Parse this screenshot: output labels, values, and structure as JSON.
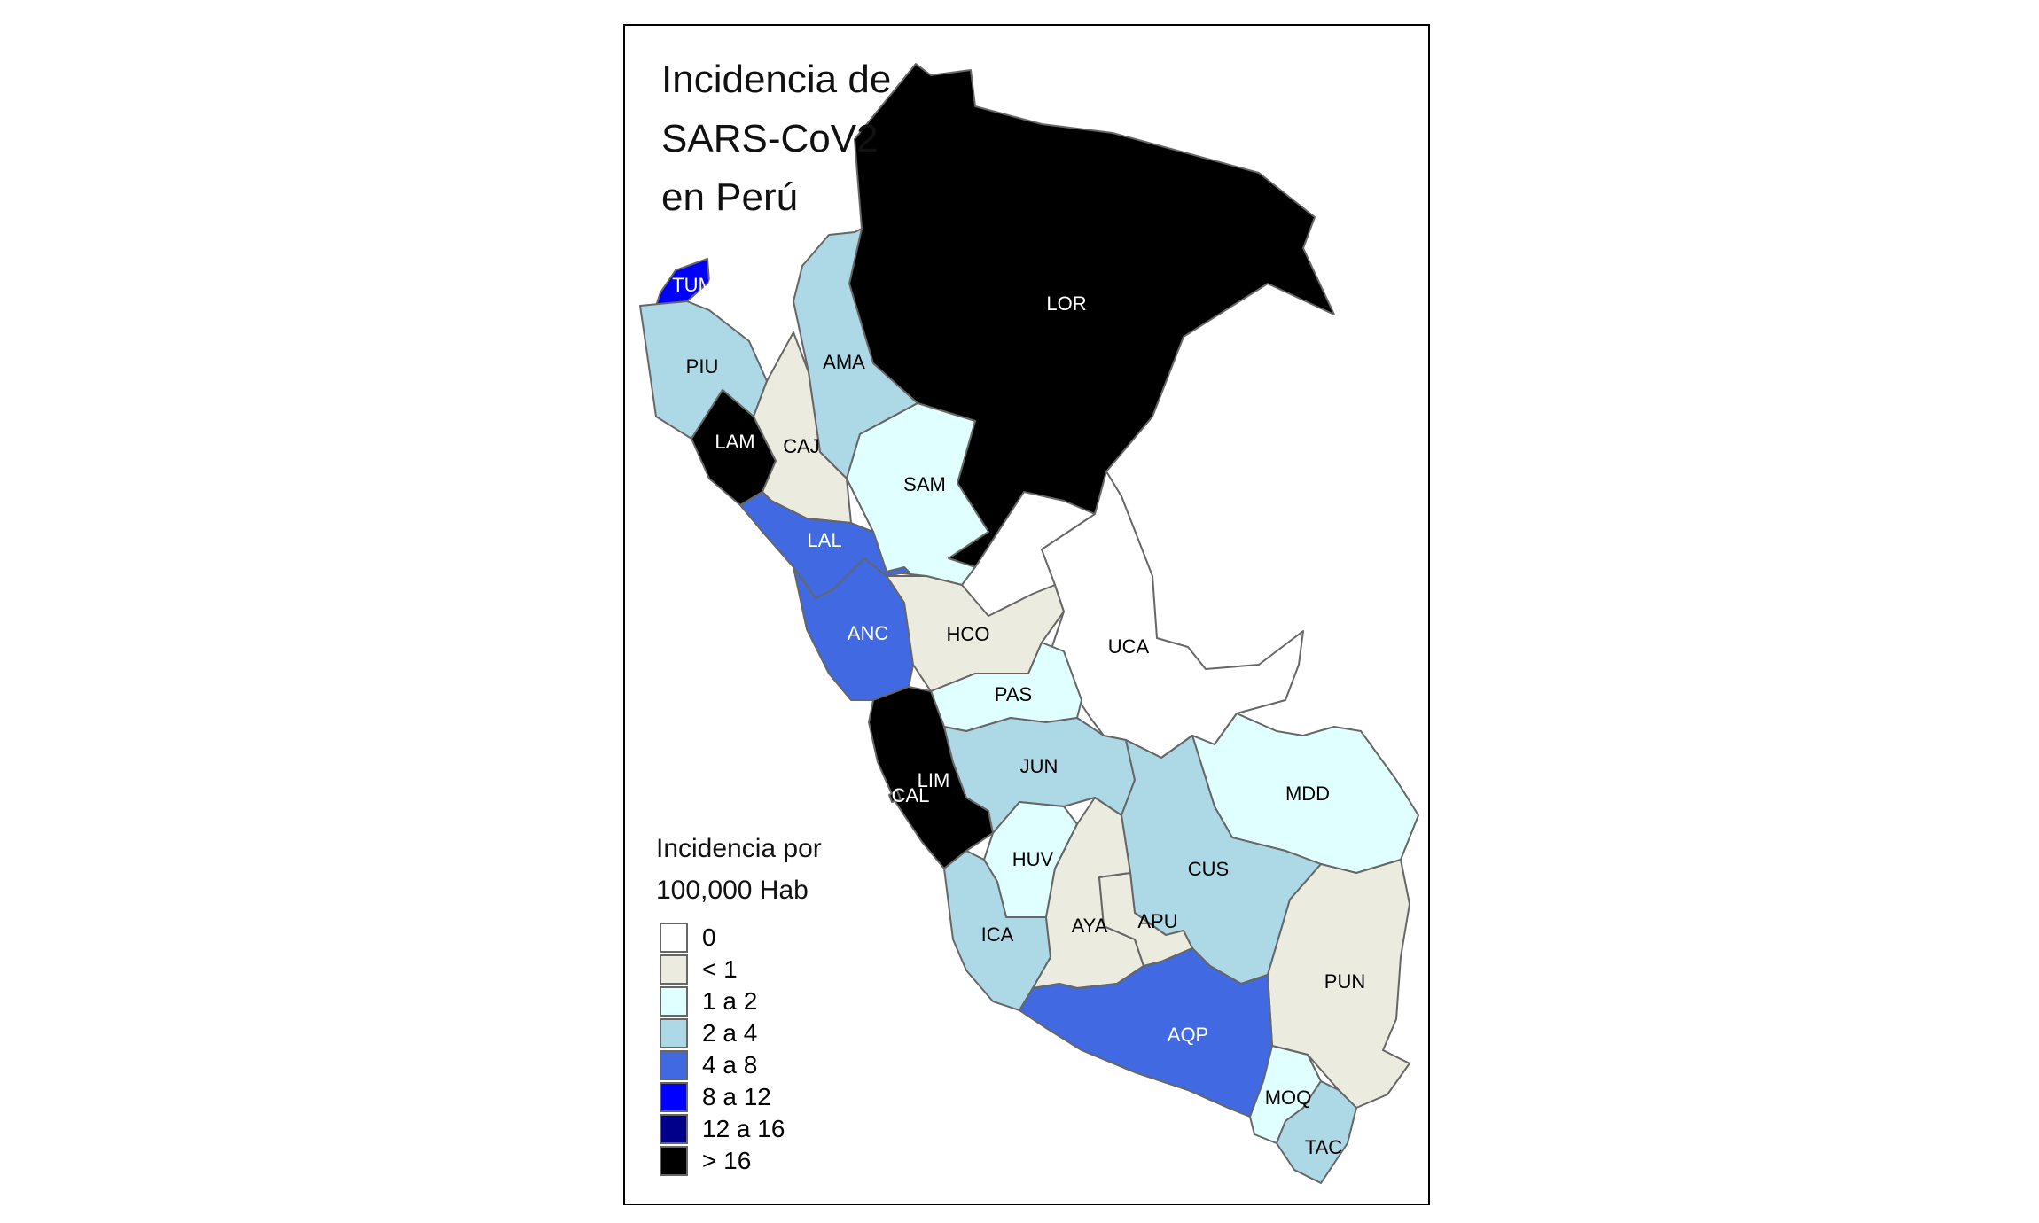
{
  "title": [
    "Incidencia de",
    "SARS-CoV2",
    "en Perú"
  ],
  "legend": {
    "title": [
      "Incidencia por",
      "100,000 Hab"
    ],
    "items": [
      {
        "label": "0",
        "color": "#ffffff"
      },
      {
        "label": "< 1",
        "color": "#ebebe0"
      },
      {
        "label": "1 a 2",
        "color": "#e0ffff"
      },
      {
        "label": "2 a 4",
        "color": "#add8e6"
      },
      {
        "label": "4 a 8",
        "color": "#4169e1"
      },
      {
        "label": "8 a 12",
        "color": "#0000ff"
      },
      {
        "label": "12 a 16",
        "color": "#00008b"
      },
      {
        "label": "> 16",
        "color": "#000000"
      }
    ]
  },
  "regions": [
    {
      "code": "LOR",
      "class": "> 16"
    },
    {
      "code": "TUM",
      "class": "8 a 12"
    },
    {
      "code": "PIU",
      "class": "2 a 4"
    },
    {
      "code": "LAM",
      "class": "> 16"
    },
    {
      "code": "CAJ",
      "class": "< 1"
    },
    {
      "code": "AMA",
      "class": "2 a 4"
    },
    {
      "code": "SAM",
      "class": "1 a 2"
    },
    {
      "code": "LAL",
      "class": "4 a 8"
    },
    {
      "code": "ANC",
      "class": "4 a 8"
    },
    {
      "code": "HCO",
      "class": "< 1"
    },
    {
      "code": "UCA",
      "class": "0"
    },
    {
      "code": "PAS",
      "class": "1 a 2"
    },
    {
      "code": "LIM",
      "class": "> 16"
    },
    {
      "code": "CAL",
      "class": "> 16"
    },
    {
      "code": "JUN",
      "class": "2 a 4"
    },
    {
      "code": "MDD",
      "class": "1 a 2"
    },
    {
      "code": "HUV",
      "class": "1 a 2"
    },
    {
      "code": "CUS",
      "class": "2 a 4"
    },
    {
      "code": "ICA",
      "class": "2 a 4"
    },
    {
      "code": "AYA",
      "class": "< 1"
    },
    {
      "code": "APU",
      "class": "< 1"
    },
    {
      "code": "PUN",
      "class": "< 1"
    },
    {
      "code": "AQP",
      "class": "4 a 8"
    },
    {
      "code": "MOQ",
      "class": "1 a 2"
    },
    {
      "code": "TAC",
      "class": "2 a 4"
    }
  ]
}
